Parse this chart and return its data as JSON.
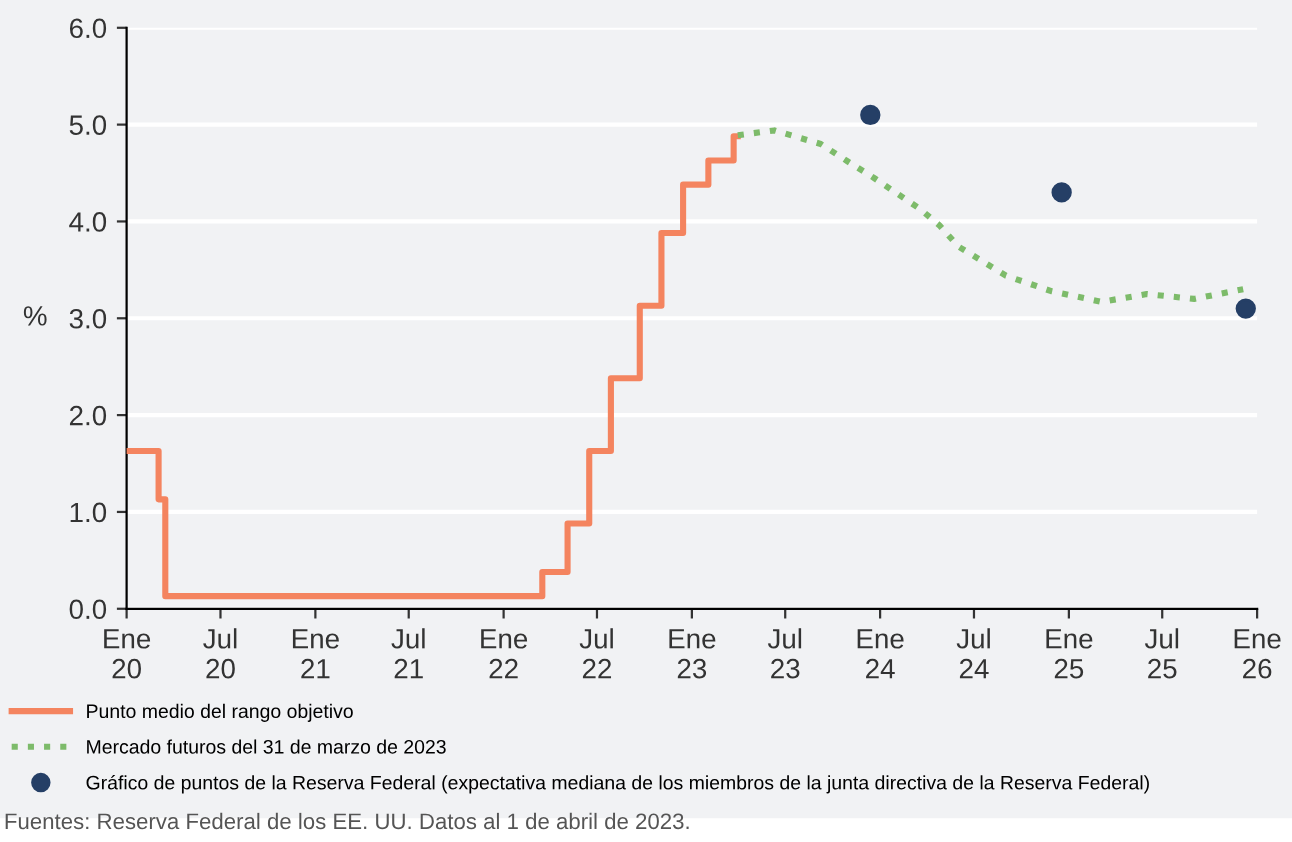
{
  "chart_data": {
    "type": "line",
    "ylabel": "%",
    "x": [
      "2020-01-01",
      "2020-03-03",
      "2020-03-16",
      "2022-03-17",
      "2022-05-05",
      "2022-06-16",
      "2022-07-28",
      "2022-09-22",
      "2022-11-03",
      "2022-12-15",
      "2023-02-02",
      "2023-03-23",
      "2023-03-31"
    ],
    "series": [
      {
        "name": "Punto medio del rango objetivo",
        "type": "step",
        "color": "#f4845f",
        "line_style": "solid",
        "values": [
          1.63,
          1.13,
          0.13,
          0.38,
          0.88,
          1.63,
          2.38,
          3.13,
          3.88,
          4.38,
          4.63,
          4.88,
          4.88
        ]
      },
      {
        "name": "Mercado futuros del 31 de marzo de 2023",
        "color": "#7dbb6a",
        "line_style": "dotted",
        "x": [
          "2023-03-31",
          "2023-06-10",
          "2023-09-08",
          "2023-10-30",
          "2023-12-20",
          "2024-03-18",
          "2024-04-25",
          "2024-06-01",
          "2024-09-01",
          "2024-11-28",
          "2025-03-05",
          "2025-06-01",
          "2025-09-01",
          "2025-12-05"
        ],
        "values": [
          4.89,
          4.94,
          4.8,
          4.62,
          4.45,
          4.13,
          3.96,
          3.74,
          3.44,
          3.28,
          3.17,
          3.25,
          3.2,
          3.3
        ]
      },
      {
        "name": "Gráfico de puntos de la Reserva Federal (expectativa mediana de los miembros de la junta directiva de la Reserva Federal)",
        "type": "scatter",
        "marker": "circle",
        "color": "#253f66",
        "x": [
          "2023-12-13",
          "2024-12-18",
          "2025-12-10"
        ],
        "values": [
          5.1,
          4.3,
          3.1
        ]
      }
    ],
    "xlim": [
      "2020-01-01",
      "2026-01-01"
    ],
    "xticks": [
      {
        "value": "2020-01-01",
        "label": "Ene\n20"
      },
      {
        "value": "2020-07-01",
        "label": "Jul\n20"
      },
      {
        "value": "2021-01-01",
        "label": "Ene\n21"
      },
      {
        "value": "2021-07-01",
        "label": "Jul\n21"
      },
      {
        "value": "2022-01-01",
        "label": "Ene\n22"
      },
      {
        "value": "2022-07-01",
        "label": "Jul\n22"
      },
      {
        "value": "2023-01-01",
        "label": "Ene\n23"
      },
      {
        "value": "2023-07-01",
        "label": "Jul\n23"
      },
      {
        "value": "2024-01-01",
        "label": "Ene\n24"
      },
      {
        "value": "2024-07-01",
        "label": "Jul\n24"
      },
      {
        "value": "2025-01-01",
        "label": "Ene\n25"
      },
      {
        "value": "2025-07-01",
        "label": "Jul\n25"
      },
      {
        "value": "2026-01-01",
        "label": "Ene\n26"
      }
    ],
    "ylim": [
      0,
      6
    ],
    "yticks": [
      {
        "value": 0,
        "label": "0.0"
      },
      {
        "value": 1,
        "label": "1.0"
      },
      {
        "value": 2,
        "label": "2.0"
      },
      {
        "value": 3,
        "label": "3.0"
      },
      {
        "value": 4,
        "label": "4.0"
      },
      {
        "value": 5,
        "label": "5.0"
      },
      {
        "value": 6,
        "label": "6.0"
      }
    ],
    "grid": "y",
    "legend": "bottom",
    "annotations": [
      "Fuentes: Reserva Federal de los EE. UU. Datos al 1 de abril de 2023."
    ]
  }
}
